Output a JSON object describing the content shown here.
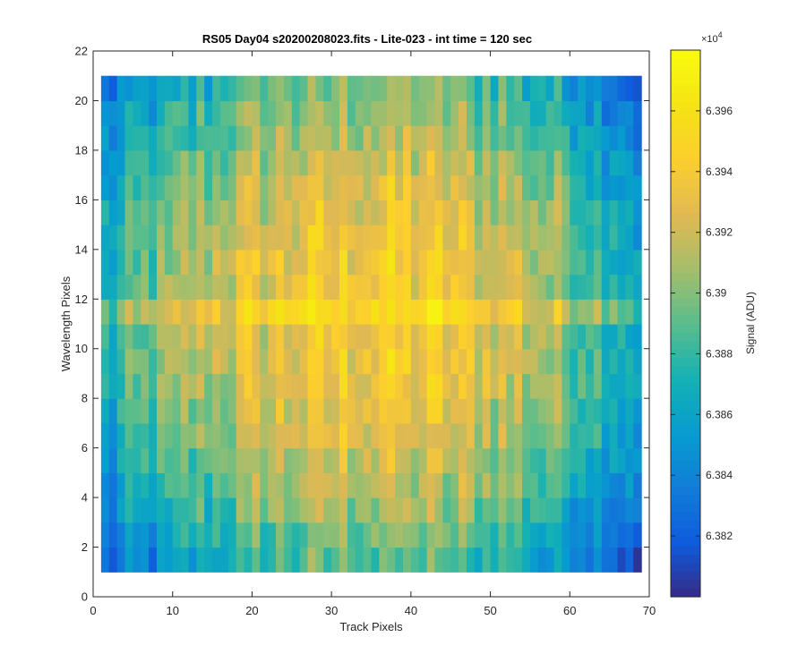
{
  "chart_data": {
    "type": "heatmap",
    "title": "RS05 Day04  s20200208023.fits - Lite-023 - int time = 120 sec",
    "xlabel": "Track Pixels",
    "ylabel": "Wavelength Pixels",
    "xlim": [
      0,
      70
    ],
    "ylim": [
      0,
      22
    ],
    "xticks": [
      0,
      10,
      20,
      30,
      40,
      50,
      60,
      70
    ],
    "yticks": [
      0,
      2,
      4,
      6,
      8,
      10,
      12,
      14,
      16,
      18,
      20,
      22
    ],
    "x_range": [
      1,
      69
    ],
    "y_range": [
      1,
      21
    ],
    "grid": false,
    "colormap": "parula",
    "colorbar": {
      "label": "Signal (ADU)",
      "exponent_label": "×10",
      "exponent": "4",
      "clim": [
        63.8,
        63.98
      ],
      "ticks": [
        63.82,
        63.84,
        63.86,
        63.88,
        63.9,
        63.92,
        63.94,
        63.96
      ],
      "tick_labels": [
        "6.382",
        "6.384",
        "6.386",
        "6.388",
        "6.39",
        "6.392",
        "6.394",
        "6.396"
      ]
    }
  }
}
